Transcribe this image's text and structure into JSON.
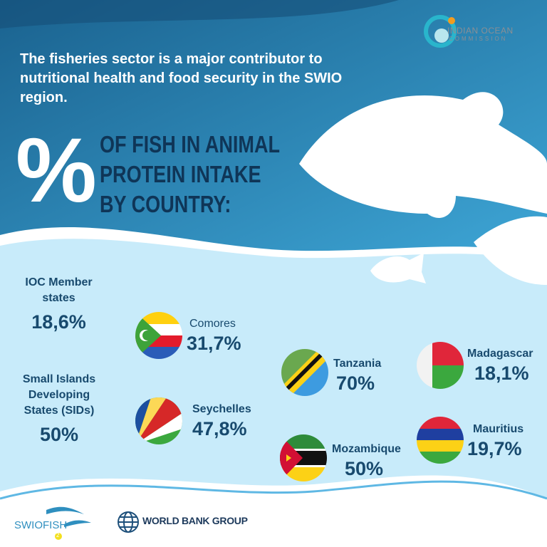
{
  "logo_ioc": {
    "name": "INDIAN OCEAN",
    "sub": "COMMISSION"
  },
  "headline": "The fisheries sector is a major contributor to nutritional health and food security in the SWIO region.",
  "percent_symbol": "%",
  "subtitle": [
    "OF FISH IN ANIMAL",
    "PROTEIN INTAKE",
    "BY COUNTRY:"
  ],
  "groups": [
    {
      "label_lines": [
        "IOC Member",
        "states"
      ],
      "value": "18,6%"
    },
    {
      "label_lines": [
        "Small Islands",
        "Developing",
        "States (SIDs)"
      ],
      "value": "50%"
    }
  ],
  "countries": [
    {
      "name": "Comores",
      "value": "31,7%",
      "flag": "comoros-flag"
    },
    {
      "name": "Seychelles",
      "value": "47,8%",
      "flag": "seychelles-flag"
    },
    {
      "name": "Tanzania",
      "value": "70%",
      "flag": "tanzania-flag"
    },
    {
      "name": "Mozambique",
      "value": "50%",
      "flag": "mozambique-flag"
    },
    {
      "name": "Madagascar",
      "value": "18,1%",
      "flag": "madagascar-flag"
    },
    {
      "name": "Mauritius",
      "value": "19,7%",
      "flag": "mauritius-flag"
    }
  ],
  "footer": {
    "swiofish": "SWIOFISH",
    "swiofish_badge": "2",
    "world_bank": "WORLD BANK GROUP"
  },
  "colors": {
    "dark_blue": "#1d6e9a",
    "navy_text": "#184a6e",
    "light_blue": "#c8ebfa"
  }
}
